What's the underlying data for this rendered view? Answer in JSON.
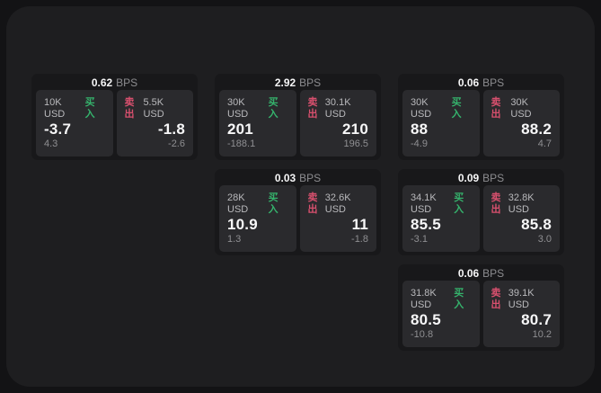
{
  "labels": {
    "bps": "BPS",
    "buy": "买入",
    "sell": "卖出"
  },
  "colors": {
    "page_bg": "#131315",
    "container_bg": "#1e1e20",
    "card_bg": "#18181a",
    "panel_bg": "#2a2a2d",
    "buy_green": "#35b26c",
    "sell_red": "#d8506e",
    "value_white": "#f7f7f8",
    "muted_gray": "#8f8f92"
  },
  "cards": [
    {
      "bps": "0.62",
      "buy": {
        "amount": "10K USD",
        "value": "-3.7",
        "delta": "4.3"
      },
      "sell": {
        "amount": "5.5K USD",
        "value": "-1.8",
        "delta": "-2.6"
      }
    },
    {
      "bps": "2.92",
      "buy": {
        "amount": "30K USD",
        "value": "201",
        "delta": "-188.1"
      },
      "sell": {
        "amount": "30.1K USD",
        "value": "210",
        "delta": "196.5"
      }
    },
    {
      "bps": "0.06",
      "buy": {
        "amount": "30K USD",
        "value": "88",
        "delta": "-4.9"
      },
      "sell": {
        "amount": "30K USD",
        "value": "88.2",
        "delta": "4.7"
      }
    },
    {
      "bps": "0.03",
      "buy": {
        "amount": "28K USD",
        "value": "10.9",
        "delta": "1.3"
      },
      "sell": {
        "amount": "32.6K USD",
        "value": "11",
        "delta": "-1.8"
      }
    },
    {
      "bps": "0.09",
      "buy": {
        "amount": "34.1K USD",
        "value": "85.5",
        "delta": "-3.1"
      },
      "sell": {
        "amount": "32.8K USD",
        "value": "85.8",
        "delta": "3.0"
      }
    },
    {
      "bps": "0.06",
      "buy": {
        "amount": "31.8K USD",
        "value": "80.5",
        "delta": "-10.8"
      },
      "sell": {
        "amount": "39.1K USD",
        "value": "80.7",
        "delta": "10.2"
      }
    }
  ]
}
